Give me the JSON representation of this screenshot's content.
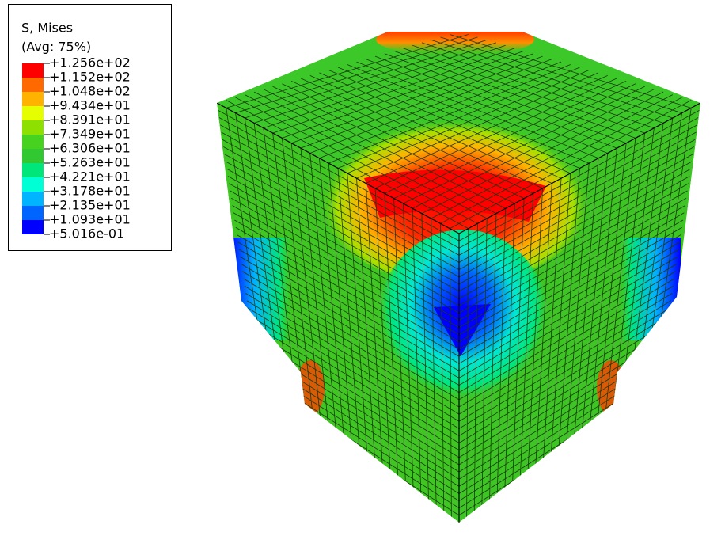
{
  "legend": {
    "title": "S, Mises",
    "subtitle": "(Avg: 75%)",
    "labels": [
      "+1.256e+02",
      "+1.152e+02",
      "+1.048e+02",
      "+9.434e+01",
      "+8.391e+01",
      "+7.349e+01",
      "+6.306e+01",
      "+5.263e+01",
      "+4.221e+01",
      "+3.178e+01",
      "+2.135e+01",
      "+1.093e+01",
      "+5.016e-01"
    ],
    "colors": [
      "#ff0000",
      "#ff6a00",
      "#ffb300",
      "#e6ff00",
      "#8ee000",
      "#46d21e",
      "#32c832",
      "#00e67a",
      "#00ffd5",
      "#00b4ff",
      "#0064ff",
      "#0000ff"
    ]
  }
}
